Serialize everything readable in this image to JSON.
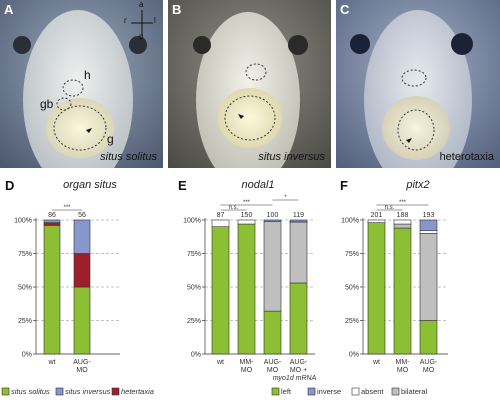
{
  "panels": {
    "A": {
      "label": "A",
      "caption": "situs solitus",
      "annotations": {
        "h": "h",
        "gb": "gb",
        "g": "g"
      },
      "axes": {
        "a": "a",
        "p": "p",
        "r": "r",
        "l": "l"
      }
    },
    "B": {
      "label": "B",
      "caption": "situs inversus"
    },
    "C": {
      "label": "C",
      "caption": "heterotaxia"
    }
  },
  "chart_data": [
    {
      "panel": "D",
      "type": "bar",
      "stacked": true,
      "title": "organ situs",
      "categories": [
        "wt",
        "AUG-MO"
      ],
      "n": [
        "86",
        "56"
      ],
      "ylim": [
        0,
        100
      ],
      "yticks": [
        "0%",
        "25%",
        "50%",
        "75%",
        "100%"
      ],
      "series": [
        {
          "name": "situs solitus",
          "color": "#8cbf34",
          "values": [
            96,
            50
          ]
        },
        {
          "name": "heterotaxia",
          "color": "#9e1f2a",
          "values": [
            2,
            25
          ]
        },
        {
          "name": "situs inversus",
          "color": "#8797cc",
          "values": [
            2,
            25
          ]
        }
      ],
      "significance": [
        {
          "from": 0,
          "to": 1,
          "label": "***"
        }
      ]
    },
    {
      "panel": "E",
      "type": "bar",
      "stacked": true,
      "title": "nodal1",
      "categories": [
        "wt",
        "MM-MO",
        "AUG-MO",
        "AUG-MO +"
      ],
      "category_sub": [
        "",
        "",
        "",
        "myo1d mRNA"
      ],
      "n": [
        "87",
        "150",
        "100",
        "119"
      ],
      "ylim": [
        0,
        100
      ],
      "yticks": [
        "0%",
        "25%",
        "50%",
        "75%",
        "100%"
      ],
      "series": [
        {
          "name": "left",
          "color": "#8cbf34",
          "values": [
            95,
            97,
            32,
            53
          ]
        },
        {
          "name": "bilateral",
          "color": "#bfbfbf",
          "values": [
            0,
            0,
            67,
            45
          ]
        },
        {
          "name": "absent",
          "color": "#ffffff",
          "values": [
            5,
            3,
            0,
            1
          ]
        },
        {
          "name": "inverse",
          "color": "#8797cc",
          "values": [
            0,
            0,
            1,
            1
          ]
        }
      ],
      "significance": [
        {
          "from": 0,
          "to": 1,
          "label": "n.s."
        },
        {
          "from": 0,
          "to": 2,
          "label": "***"
        },
        {
          "from": 2,
          "to": 3,
          "label": "*"
        }
      ]
    },
    {
      "panel": "F",
      "type": "bar",
      "stacked": true,
      "title": "pitx2",
      "categories": [
        "wt",
        "MM-MO",
        "AUG-MO"
      ],
      "n": [
        "201",
        "188",
        "193"
      ],
      "ylim": [
        0,
        100
      ],
      "yticks": [
        "0%",
        "25%",
        "50%",
        "75%",
        "100%"
      ],
      "series": [
        {
          "name": "left",
          "color": "#8cbf34",
          "values": [
            98,
            94,
            25
          ]
        },
        {
          "name": "bilateral",
          "color": "#bfbfbf",
          "values": [
            0,
            3,
            65
          ]
        },
        {
          "name": "absent",
          "color": "#ffffff",
          "values": [
            2,
            3,
            2
          ]
        },
        {
          "name": "inverse",
          "color": "#8797cc",
          "values": [
            0,
            0,
            8
          ]
        }
      ],
      "significance": [
        {
          "from": 0,
          "to": 1,
          "label": "n.s."
        },
        {
          "from": 0,
          "to": 2,
          "label": "***"
        }
      ]
    }
  ],
  "legends": {
    "D": [
      {
        "label": "situs solitus",
        "color": "#8cbf34"
      },
      {
        "label": "situs inversus",
        "color": "#8797cc"
      },
      {
        "label": "hetertaxia",
        "color": "#9e1f2a"
      }
    ],
    "EF": [
      {
        "label": "left",
        "color": "#8cbf34"
      },
      {
        "label": "inverse",
        "color": "#8797cc"
      },
      {
        "label": "absent",
        "color": "#ffffff"
      },
      {
        "label": "bilateral",
        "color": "#bfbfbf"
      }
    ]
  }
}
